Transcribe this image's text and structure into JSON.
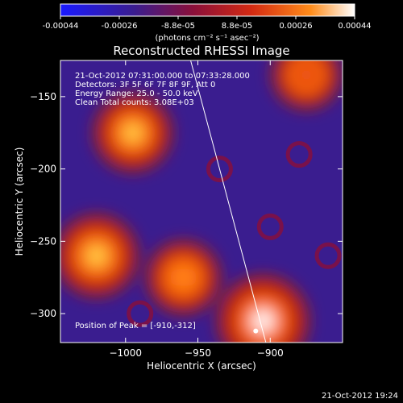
{
  "colorbar": {
    "ticks": [
      "-0.00044",
      "-0.00026",
      "-8.8e-05",
      "8.8e-05",
      "0.00026",
      "0.00044"
    ],
    "unit_label": "(photons cm⁻² s⁻¹ asec⁻²)",
    "colors": [
      "#1a1aff",
      "#3a1d8f",
      "#8a0f3a",
      "#d42a12",
      "#ff8c1a",
      "#ffffff"
    ]
  },
  "chart_data": {
    "type": "heatmap",
    "title": "Reconstructed RHESSI Image",
    "xlabel": "Heliocentric X (arcsec)",
    "ylabel": "Heliocentric Y (arcsec)",
    "xlim": [
      -1045,
      -850
    ],
    "ylim": [
      -320,
      -125
    ],
    "x_ticks": [
      -1000,
      -950,
      -900
    ],
    "y_ticks": [
      -150,
      -200,
      -250,
      -300
    ],
    "x_tick_labels": [
      "−1000",
      "−950",
      "−900"
    ],
    "y_tick_labels": [
      "−150",
      "−200",
      "−250",
      "−300"
    ],
    "annotations": [
      "21-Oct-2012 07:31:00.000 to 07:33:28.000",
      "Detectors: 3F 5F 6F 7F 8F 9F, Att 0",
      "Energy Range: 25.0 - 50.0 keV",
      "Clean     Total counts: 3.08E+03"
    ],
    "peak_label": "Position of Peak = [-910,-312]",
    "peak": [
      -910,
      -312
    ],
    "limb_line": [
      [
        -955,
        -125
      ],
      [
        -903,
        -320
      ]
    ],
    "bright_regions": [
      {
        "x": -995,
        "y": -175,
        "level": 0.85
      },
      {
        "x": -1020,
        "y": -260,
        "level": 0.9
      },
      {
        "x": -960,
        "y": -275,
        "level": 0.8
      },
      {
        "x": -905,
        "y": -305,
        "level": 1.0
      },
      {
        "x": -875,
        "y": -135,
        "level": 0.75
      }
    ]
  },
  "footer": {
    "timestamp": "21-Oct-2012 19:24"
  }
}
